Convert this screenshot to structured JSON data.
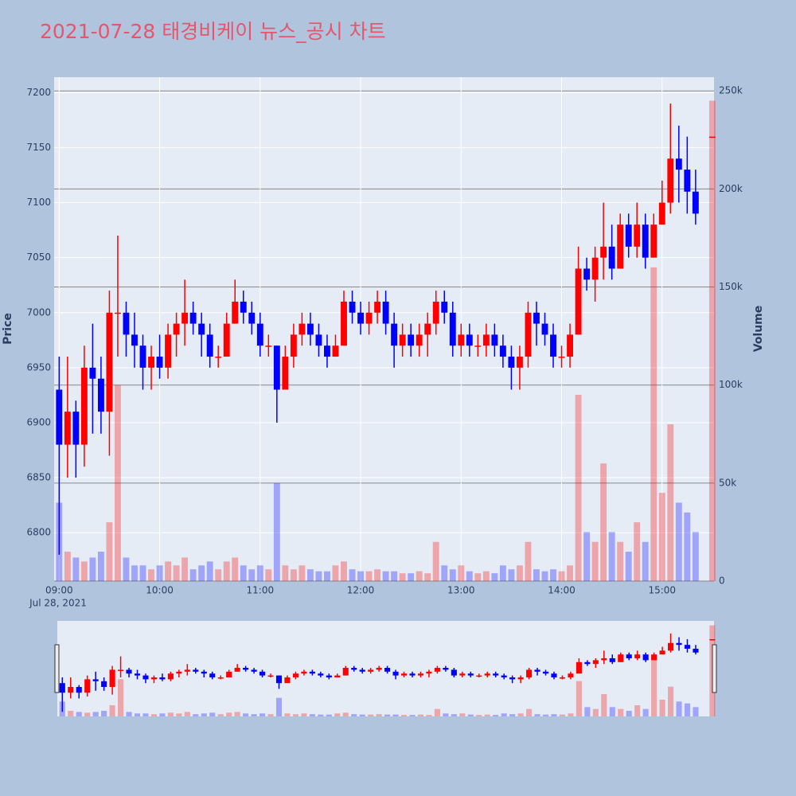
{
  "chart_data": {
    "type": "candlestick",
    "title": "2021-07-28 태경비케이 뉴스_공시 차트",
    "y_title": "Price",
    "y2_title": "Volume",
    "x_date_label": "Jul 28, 2021",
    "colors": {
      "increasing": "#ff0000",
      "decreasing": "#0000ff"
    },
    "x": [
      "09:00",
      "09:05",
      "09:10",
      "09:15",
      "09:20",
      "09:25",
      "09:30",
      "09:35",
      "09:40",
      "09:45",
      "09:50",
      "09:55",
      "10:00",
      "10:05",
      "10:10",
      "10:15",
      "10:20",
      "10:25",
      "10:30",
      "10:35",
      "10:40",
      "10:45",
      "10:50",
      "10:55",
      "11:00",
      "11:05",
      "11:10",
      "11:15",
      "11:20",
      "11:25",
      "11:30",
      "11:35",
      "11:40",
      "11:45",
      "11:50",
      "11:55",
      "12:00",
      "12:05",
      "12:10",
      "12:15",
      "12:20",
      "12:25",
      "12:30",
      "12:35",
      "12:40",
      "12:45",
      "12:50",
      "12:55",
      "13:00",
      "13:05",
      "13:10",
      "13:15",
      "13:20",
      "13:25",
      "13:30",
      "13:35",
      "13:40",
      "13:45",
      "13:50",
      "13:55",
      "14:00",
      "14:05",
      "14:10",
      "14:15",
      "14:20",
      "14:25",
      "14:30",
      "14:35",
      "14:40",
      "14:45",
      "14:50",
      "14:55",
      "15:00",
      "15:05",
      "15:10",
      "15:15",
      "15:20",
      "15:30"
    ],
    "open": [
      6930,
      6880,
      6910,
      6880,
      6950,
      6940,
      6910,
      7000,
      7000,
      6980,
      6970,
      6950,
      6960,
      6950,
      6980,
      6990,
      7000,
      6990,
      6980,
      6960,
      6960,
      6990,
      7010,
      7000,
      6990,
      6970,
      6970,
      6930,
      6960,
      6980,
      6990,
      6980,
      6970,
      6960,
      6970,
      7010,
      7000,
      6990,
      7000,
      7010,
      6990,
      6970,
      6980,
      6970,
      6980,
      6990,
      7010,
      7000,
      6970,
      6980,
      6970,
      6970,
      6980,
      6970,
      6960,
      6950,
      6960,
      7000,
      6990,
      6980,
      6960,
      6960,
      6980,
      7040,
      7030,
      7050,
      7060,
      7040,
      7080,
      7060,
      7080,
      7050,
      7080,
      7100,
      7140,
      7130,
      7110,
      7160
    ],
    "high": [
      6960,
      6960,
      6920,
      6970,
      6990,
      6960,
      7020,
      7070,
      7010,
      7000,
      6980,
      6970,
      6980,
      6990,
      7000,
      7030,
      7010,
      7000,
      6990,
      6970,
      7000,
      7030,
      7020,
      7010,
      7000,
      6980,
      6970,
      6970,
      6990,
      7000,
      7000,
      6990,
      6980,
      6980,
      7020,
      7020,
      7010,
      7010,
      7020,
      7020,
      7000,
      6990,
      6990,
      6990,
      7000,
      7020,
      7020,
      7010,
      6990,
      6990,
      6980,
      6990,
      6990,
      6980,
      6970,
      6970,
      7010,
      7010,
      7000,
      6990,
      6970,
      6990,
      7060,
      7050,
      7060,
      7100,
      7080,
      7090,
      7090,
      7100,
      7090,
      7090,
      7120,
      7190,
      7170,
      7160,
      7130,
      7160
    ],
    "low": [
      6780,
      6850,
      6850,
      6860,
      6890,
      6890,
      6870,
      6960,
      6960,
      6950,
      6930,
      6930,
      6940,
      6940,
      6960,
      6970,
      6980,
      6960,
      6950,
      6950,
      6960,
      6990,
      6990,
      6980,
      6960,
      6960,
      6900,
      6930,
      6950,
      6970,
      6970,
      6960,
      6950,
      6960,
      6970,
      6990,
      6980,
      6980,
      6990,
      6980,
      6950,
      6960,
      6960,
      6960,
      6960,
      6980,
      6990,
      6960,
      6960,
      6960,
      6960,
      6960,
      6960,
      6950,
      6930,
      6930,
      6950,
      6970,
      6970,
      6950,
      6950,
      6950,
      6980,
      7020,
      7010,
      7030,
      7030,
      7040,
      7050,
      7050,
      7040,
      7050,
      7080,
      7090,
      7100,
      7090,
      7080,
      7160
    ],
    "close": [
      6880,
      6910,
      6880,
      6950,
      6940,
      6910,
      7000,
      7000,
      6980,
      6970,
      6950,
      6960,
      6950,
      6980,
      6990,
      7000,
      6990,
      6980,
      6960,
      6960,
      6990,
      7010,
      7000,
      6990,
      6970,
      6970,
      6930,
      6960,
      6980,
      6990,
      6980,
      6970,
      6960,
      6970,
      7010,
      7000,
      6990,
      7000,
      7010,
      6990,
      6970,
      6980,
      6970,
      6980,
      6990,
      7010,
      7000,
      6970,
      6980,
      6970,
      6970,
      6980,
      6970,
      6960,
      6950,
      6960,
      7000,
      6990,
      6980,
      6960,
      6960,
      6980,
      7040,
      7030,
      7050,
      7060,
      7040,
      7080,
      7060,
      7080,
      7050,
      7080,
      7100,
      7140,
      7130,
      7110,
      7090,
      7160
    ],
    "volume": [
      40000,
      15000,
      12000,
      10000,
      12000,
      15000,
      30000,
      100000,
      12000,
      8000,
      8000,
      6000,
      8000,
      10000,
      8000,
      12000,
      6000,
      8000,
      10000,
      6000,
      10000,
      12000,
      8000,
      6000,
      8000,
      6000,
      50000,
      8000,
      6000,
      8000,
      6000,
      5000,
      5000,
      8000,
      10000,
      6000,
      5000,
      5000,
      6000,
      5000,
      5000,
      4000,
      4000,
      5000,
      4000,
      20000,
      8000,
      6000,
      8000,
      5000,
      4000,
      5000,
      4000,
      8000,
      6000,
      8000,
      20000,
      6000,
      5000,
      6000,
      5000,
      8000,
      95000,
      25000,
      20000,
      60000,
      25000,
      20000,
      15000,
      30000,
      20000,
      160000,
      45000,
      80000,
      40000,
      35000,
      25000,
      245000
    ],
    "xlim": [
      "08:57",
      "15:31"
    ],
    "xticks": [
      "09:00",
      "10:00",
      "11:00",
      "12:00",
      "13:00",
      "14:00",
      "15:00"
    ],
    "ylim": [
      6756,
      7214
    ],
    "yticks": [
      6800,
      6850,
      6900,
      6950,
      7000,
      7050,
      7100,
      7150,
      7200
    ],
    "y2lim": [
      0,
      257000
    ],
    "y2ticks": [
      0,
      {
        "value": 50000,
        "label": "50k"
      },
      {
        "value": 100000,
        "label": "100k"
      },
      {
        "value": 150000,
        "label": "150k"
      },
      {
        "value": 200000,
        "label": "200k"
      },
      {
        "value": 250000,
        "label": "250k"
      }
    ],
    "grid": true,
    "rangeslider": true
  }
}
